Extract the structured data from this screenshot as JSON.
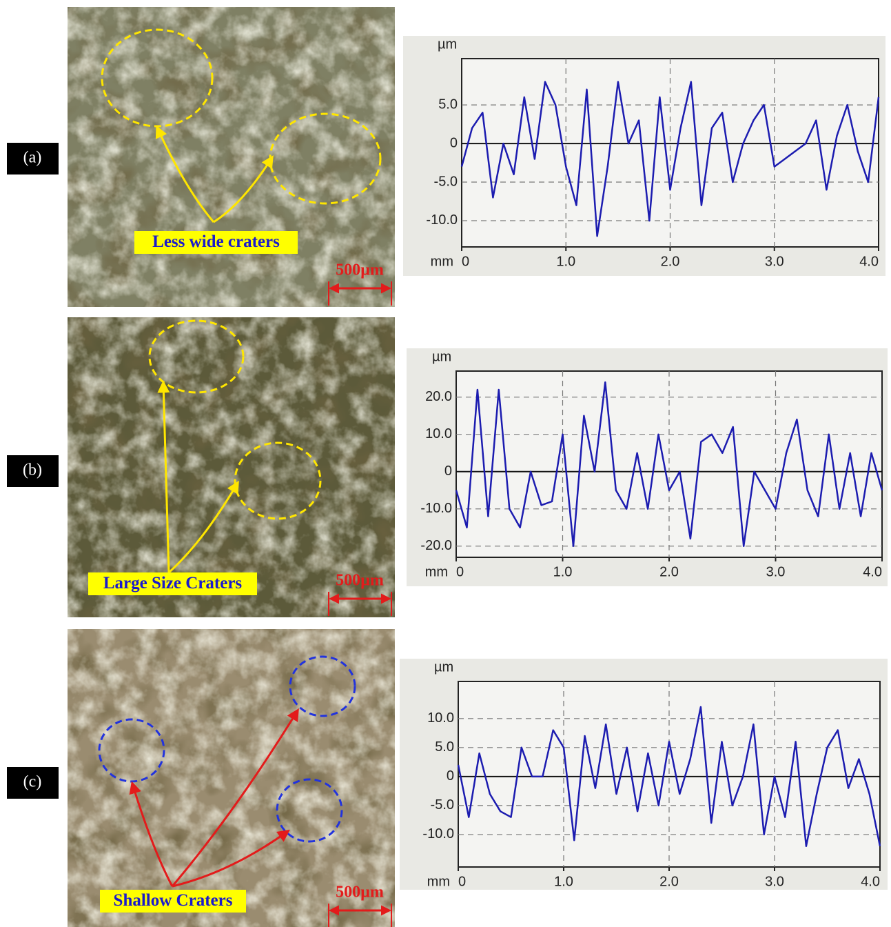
{
  "panels": [
    {
      "label": "(a)",
      "annotation": "Less wide craters",
      "scale": "500µm"
    },
    {
      "label": "(b)",
      "annotation": "Large Size Craters",
      "scale": "500µm"
    },
    {
      "label": "(c)",
      "annotation": "Shallow Craters",
      "scale": "500µm"
    }
  ],
  "chart_data": [
    {
      "type": "line",
      "x_label": "mm",
      "y_label": "µm",
      "color": "#1c1cb0",
      "grid": true,
      "x": [
        0,
        0.1,
        0.2,
        0.3,
        0.4,
        0.5,
        0.6,
        0.7,
        0.8,
        0.9,
        1,
        1.1,
        1.2,
        1.3,
        1.4,
        1.5,
        1.6,
        1.7,
        1.8,
        1.9,
        2,
        2.1,
        2.2,
        2.3,
        2.4,
        2.5,
        2.6,
        2.7,
        2.8,
        2.9,
        3,
        3.1,
        3.2,
        3.3,
        3.4,
        3.5,
        3.6,
        3.7,
        3.8,
        3.9,
        4
      ],
      "values": [
        -3,
        2,
        4,
        -7,
        0,
        -4,
        6,
        -2,
        8,
        5,
        -3,
        -8,
        7,
        -12,
        -3,
        8,
        0,
        3,
        -10,
        6,
        -6,
        2,
        8,
        -8,
        2,
        4,
        -5,
        0,
        3,
        5,
        -3,
        -2,
        -1,
        0,
        3,
        -6,
        1,
        5,
        -1,
        -5,
        6
      ],
      "xlim": [
        0,
        4
      ],
      "xticks": [
        0,
        {
          "value": 1,
          "label": "1.0"
        },
        {
          "value": 2,
          "label": "2.0"
        },
        {
          "value": 3,
          "label": "3.0"
        },
        {
          "value": 4,
          "label": "4.0"
        }
      ],
      "ylim": [
        -13.4,
        11
      ],
      "yticks": [
        {
          "value": -10,
          "label": "-10.0"
        },
        {
          "value": -5,
          "label": "-5.0"
        },
        0,
        {
          "value": 5,
          "label": "5.0"
        }
      ]
    },
    {
      "type": "line",
      "x_label": "mm",
      "y_label": "µm",
      "color": "#1c1cb0",
      "grid": true,
      "x": [
        0,
        0.1,
        0.2,
        0.3,
        0.4,
        0.5,
        0.6,
        0.7,
        0.8,
        0.9,
        1,
        1.1,
        1.2,
        1.3,
        1.4,
        1.5,
        1.6,
        1.7,
        1.8,
        1.9,
        2,
        2.1,
        2.2,
        2.3,
        2.4,
        2.5,
        2.6,
        2.7,
        2.8,
        2.9,
        3,
        3.1,
        3.2,
        3.3,
        3.4,
        3.5,
        3.6,
        3.7,
        3.8,
        3.9,
        4
      ],
      "values": [
        -5,
        -15,
        22,
        -12,
        22,
        -10,
        -15,
        0,
        -9,
        -8,
        10,
        -20,
        15,
        0,
        24,
        -5,
        -10,
        5,
        -10,
        10,
        -5,
        0,
        -18,
        8,
        10,
        5,
        12,
        -20,
        0,
        -5,
        -10,
        5,
        14,
        -5,
        -12,
        10,
        -10,
        5,
        -12,
        5,
        -5
      ],
      "xlim": [
        0,
        4
      ],
      "xticks": [
        0,
        {
          "value": 1,
          "label": "1.0"
        },
        {
          "value": 2,
          "label": "2.0"
        },
        {
          "value": 3,
          "label": "3.0"
        },
        {
          "value": 4,
          "label": "4.0"
        }
      ],
      "ylim": [
        -23,
        27
      ],
      "yticks": [
        {
          "value": -20,
          "label": "-20.0"
        },
        {
          "value": -10,
          "label": "-10.0"
        },
        0,
        {
          "value": 10,
          "label": "10.0"
        },
        {
          "value": 20,
          "label": "20.0"
        }
      ]
    },
    {
      "type": "line",
      "x_label": "mm",
      "y_label": "µm",
      "color": "#1c1cb0",
      "grid": true,
      "x": [
        0,
        0.1,
        0.2,
        0.3,
        0.4,
        0.5,
        0.6,
        0.7,
        0.8,
        0.9,
        1,
        1.1,
        1.2,
        1.3,
        1.4,
        1.5,
        1.6,
        1.7,
        1.8,
        1.9,
        2,
        2.1,
        2.2,
        2.3,
        2.4,
        2.5,
        2.6,
        2.7,
        2.8,
        2.9,
        3,
        3.1,
        3.2,
        3.3,
        3.4,
        3.5,
        3.6,
        3.7,
        3.8,
        3.9,
        4
      ],
      "values": [
        2,
        -7,
        4,
        -3,
        -6,
        -7,
        5,
        0,
        0,
        8,
        5,
        -11,
        7,
        -2,
        9,
        -3,
        5,
        -6,
        4,
        -5,
        6,
        -3,
        3,
        12,
        -8,
        6,
        -5,
        0,
        9,
        -10,
        0,
        -7,
        6,
        -12,
        -3,
        5,
        8,
        -2,
        3,
        -3,
        -12
      ],
      "xlim": [
        0,
        4
      ],
      "xticks": [
        0,
        {
          "value": 1,
          "label": "1.0"
        },
        {
          "value": 2,
          "label": "2.0"
        },
        {
          "value": 3,
          "label": "3.0"
        },
        {
          "value": 4,
          "label": "4.0"
        }
      ],
      "ylim": [
        -15.6,
        16.4
      ],
      "yticks": [
        {
          "value": -10,
          "label": "-10.0"
        },
        {
          "value": -5,
          "label": "-5.0"
        },
        0,
        {
          "value": 5,
          "label": "5.0"
        },
        {
          "value": 10,
          "label": "10.0"
        }
      ]
    }
  ]
}
